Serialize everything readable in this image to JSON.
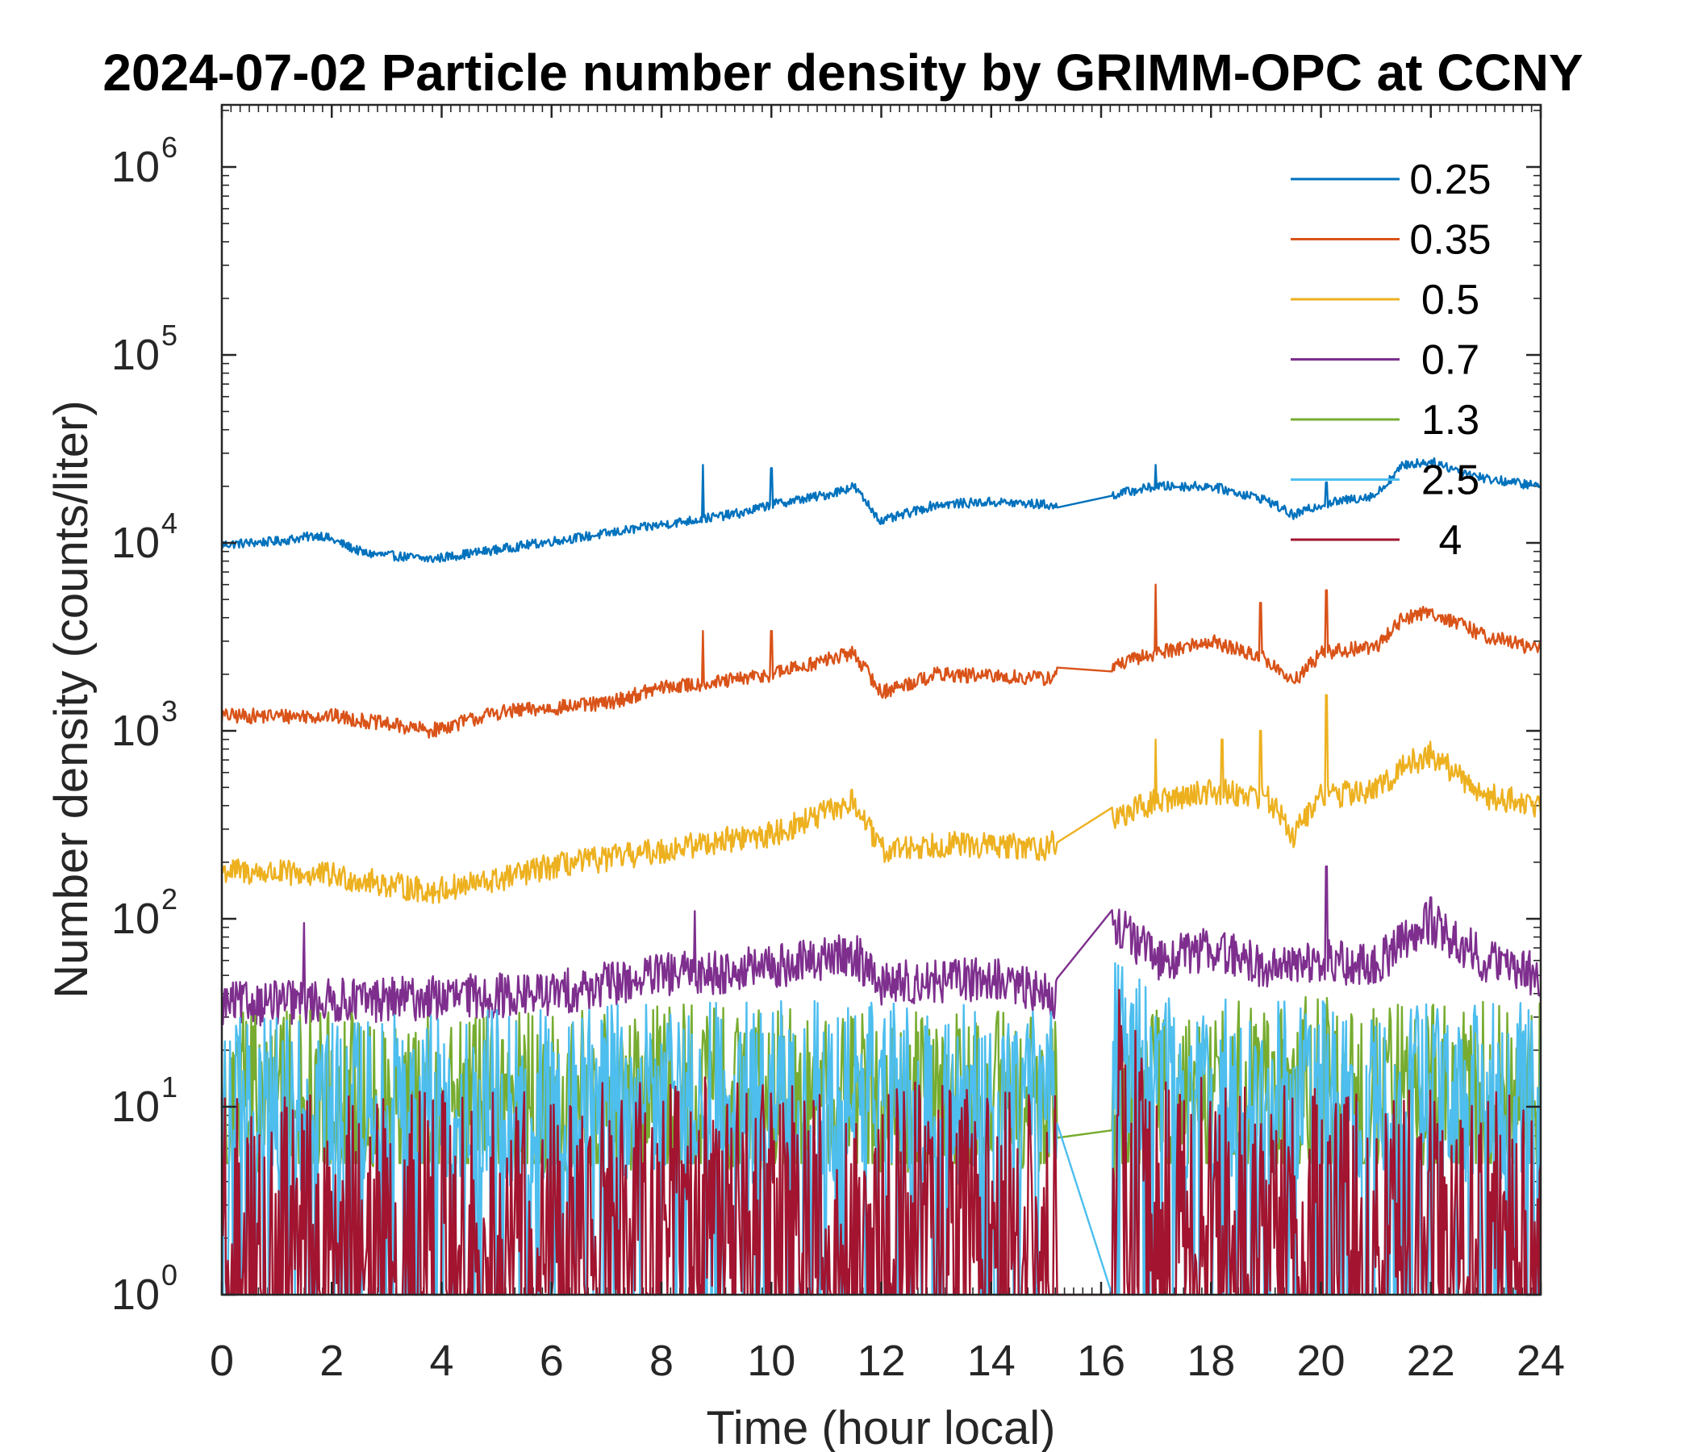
{
  "chart_data": {
    "type": "line",
    "title": "2024-07-02 Particle number density by GRIMM-OPC at CCNY",
    "xlabel": "Time (hour local)",
    "ylabel": "Number density (counts/liter)",
    "xlim": [
      0,
      24
    ],
    "ylim_log10": [
      0,
      6.3
    ],
    "yscale": "log",
    "xticks": [
      0,
      2,
      4,
      6,
      8,
      10,
      12,
      14,
      16,
      18,
      20,
      22,
      24
    ],
    "yticks": [
      {
        "exp": 0,
        "base": "10",
        "sup": "0"
      },
      {
        "exp": 1,
        "base": "10",
        "sup": "1"
      },
      {
        "exp": 2,
        "base": "10",
        "sup": "2"
      },
      {
        "exp": 3,
        "base": "10",
        "sup": "3"
      },
      {
        "exp": 4,
        "base": "10",
        "sup": "4"
      },
      {
        "exp": 5,
        "base": "10",
        "sup": "5"
      },
      {
        "exp": 6,
        "base": "10",
        "sup": "6"
      }
    ],
    "data_gap_hours": [
      15.2,
      16.2
    ],
    "series": [
      {
        "name": "0.25",
        "color": "#0072BD",
        "noise": 0.025,
        "floor": null,
        "points": [
          [
            0,
            9800
          ],
          [
            1,
            10200
          ],
          [
            1.8,
            11000
          ],
          [
            2.6,
            8800
          ],
          [
            3.8,
            8200
          ],
          [
            5,
            9200
          ],
          [
            6,
            10200
          ],
          [
            7,
            11200
          ],
          [
            8,
            12500
          ],
          [
            8.8,
            13500
          ],
          [
            9.5,
            14500
          ],
          [
            10,
            16000
          ],
          [
            11,
            18000
          ],
          [
            11.5,
            20000
          ],
          [
            12,
            13000
          ],
          [
            13,
            16000
          ],
          [
            14,
            16500
          ],
          [
            15,
            16000
          ],
          [
            15.2,
            15500
          ],
          [
            16.2,
            18000
          ],
          [
            17,
            20000
          ],
          [
            18,
            20000
          ],
          [
            19,
            17000
          ],
          [
            19.5,
            14000
          ],
          [
            20,
            16000
          ],
          [
            21,
            18000
          ],
          [
            21.5,
            26000
          ],
          [
            22,
            27000
          ],
          [
            23,
            22000
          ],
          [
            24,
            20000
          ]
        ],
        "spikes": [
          [
            8.75,
            26000
          ],
          [
            10,
            25000
          ],
          [
            17,
            26000
          ],
          [
            20.1,
            21000
          ]
        ]
      },
      {
        "name": "0.35",
        "color": "#D95319",
        "noise": 0.04,
        "floor": null,
        "points": [
          [
            0,
            1200
          ],
          [
            2,
            1200
          ],
          [
            3.8,
            1000
          ],
          [
            5,
            1250
          ],
          [
            7,
            1400
          ],
          [
            8,
            1700
          ],
          [
            9,
            1800
          ],
          [
            10,
            2000
          ],
          [
            11.5,
            2600
          ],
          [
            12,
            1600
          ],
          [
            13,
            2000
          ],
          [
            15,
            1900
          ],
          [
            15.2,
            2000
          ],
          [
            16.2,
            2200
          ],
          [
            17,
            2600
          ],
          [
            18,
            3000
          ],
          [
            19,
            2400
          ],
          [
            19.5,
            1800
          ],
          [
            20,
            2600
          ],
          [
            21,
            2800
          ],
          [
            21.5,
            4000
          ],
          [
            22,
            4300
          ],
          [
            23,
            3200
          ],
          [
            24,
            2700
          ]
        ],
        "spikes": [
          [
            8.75,
            3400
          ],
          [
            10,
            3400
          ],
          [
            17,
            6000
          ],
          [
            18.9,
            4800
          ],
          [
            20.1,
            5600
          ]
        ]
      },
      {
        "name": "0.5",
        "color": "#EDB120",
        "noise": 0.07,
        "floor": null,
        "points": [
          [
            0,
            180
          ],
          [
            2,
            170
          ],
          [
            3.8,
            140
          ],
          [
            5,
            160
          ],
          [
            6,
            190
          ],
          [
            8,
            230
          ],
          [
            9,
            260
          ],
          [
            10,
            280
          ],
          [
            11.5,
            420
          ],
          [
            12,
            230
          ],
          [
            13,
            250
          ],
          [
            15,
            240
          ],
          [
            15.2,
            260
          ],
          [
            16.2,
            340
          ],
          [
            17,
            420
          ],
          [
            18,
            480
          ],
          [
            19,
            450
          ],
          [
            19.5,
            280
          ],
          [
            20,
            450
          ],
          [
            21,
            480
          ],
          [
            21.5,
            650
          ],
          [
            22,
            750
          ],
          [
            23,
            450
          ],
          [
            24,
            400
          ]
        ],
        "spikes": [
          [
            17,
            900
          ],
          [
            18.2,
            900
          ],
          [
            18.9,
            1000
          ],
          [
            20.1,
            1550
          ]
        ]
      },
      {
        "name": "0.7",
        "color": "#7E2F8E",
        "noise": 0.12,
        "floor": null,
        "points": [
          [
            0,
            35
          ],
          [
            4,
            38
          ],
          [
            6,
            40
          ],
          [
            8,
            50
          ],
          [
            10,
            55
          ],
          [
            11.5,
            65
          ],
          [
            12,
            45
          ],
          [
            14,
            48
          ],
          [
            15.2,
            38
          ],
          [
            16.2,
            100
          ],
          [
            17,
            60
          ],
          [
            18,
            70
          ],
          [
            19,
            55
          ],
          [
            20,
            60
          ],
          [
            21,
            55
          ],
          [
            21.5,
            80
          ],
          [
            22,
            95
          ],
          [
            23,
            60
          ],
          [
            24,
            50
          ]
        ],
        "spikes": [
          [
            1.5,
            95
          ],
          [
            8.6,
            110
          ],
          [
            20.1,
            190
          ],
          [
            22,
            130
          ]
        ]
      },
      {
        "name": "1.3",
        "color": "#77AC30",
        "noise": 0.2,
        "floor": 5,
        "points": [
          [
            0,
            12
          ],
          [
            6,
            12
          ],
          [
            8,
            13
          ],
          [
            12,
            12
          ],
          [
            15.2,
            12
          ],
          [
            15.25,
            5
          ],
          [
            16.2,
            10
          ],
          [
            17,
            14
          ],
          [
            20,
            14
          ],
          [
            24,
            13
          ]
        ],
        "spikes": []
      },
      {
        "name": "2.5",
        "color": "#4DBEEE",
        "noise": 0.22,
        "floor": 1,
        "points": [
          [
            0,
            10
          ],
          [
            6,
            11
          ],
          [
            8,
            12
          ],
          [
            12,
            12
          ],
          [
            15.2,
            11
          ],
          [
            15.25,
            12
          ],
          [
            16.2,
            22
          ],
          [
            17,
            13
          ],
          [
            20,
            12
          ],
          [
            24,
            12
          ]
        ],
        "spikes": []
      },
      {
        "name": "4",
        "color": "#A2142F",
        "noise": 0.35,
        "floor": 1,
        "points": [
          [
            0,
            2
          ],
          [
            6,
            2.2
          ],
          [
            8,
            2.5
          ],
          [
            12,
            2.4
          ],
          [
            15.2,
            2
          ],
          [
            15.25,
            1
          ],
          [
            16.2,
            10
          ],
          [
            17,
            2.5
          ],
          [
            20,
            2.5
          ],
          [
            24,
            2.3
          ]
        ],
        "spikes": [
          [
            8.3,
            12
          ],
          [
            11.9,
            6
          ],
          [
            16.3,
            9
          ]
        ]
      }
    ],
    "legend": {
      "location": "top-right",
      "box": false
    }
  }
}
